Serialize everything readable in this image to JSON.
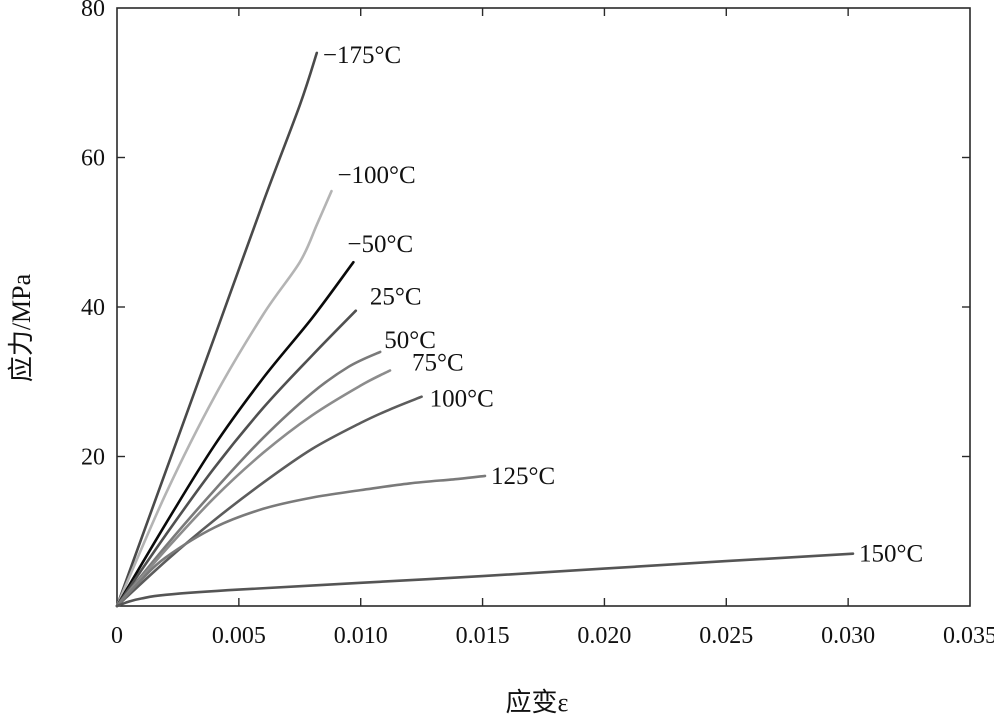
{
  "chart_data": {
    "type": "line",
    "title": "",
    "xlabel": "应变ε",
    "ylabel": "应力/MPa",
    "xlim": [
      0,
      0.035
    ],
    "ylim": [
      0,
      80
    ],
    "x_ticks": [
      0,
      0.005,
      0.01,
      0.015,
      0.02,
      0.025,
      0.03,
      0.035
    ],
    "x_tick_labels": [
      "0",
      "0.005",
      "0.010",
      "0.015",
      "0.020",
      "0.025",
      "0.030",
      "0.035"
    ],
    "y_ticks": [
      20,
      40,
      60,
      80
    ],
    "y_tick_labels": [
      "20",
      "40",
      "60",
      "80"
    ],
    "grid": false,
    "legend": "none",
    "series": [
      {
        "name": "−175°C",
        "color": "#4a4a4a",
        "x": [
          0,
          0.002,
          0.004,
          0.006,
          0.0075,
          0.0082
        ],
        "y": [
          0,
          18,
          36,
          54,
          67,
          74
        ]
      },
      {
        "name": "−100°C",
        "color": "#b4b4b4",
        "x": [
          0,
          0.002,
          0.004,
          0.006,
          0.0075,
          0.0082,
          0.0088
        ],
        "y": [
          0,
          15,
          28,
          39,
          46,
          51,
          55.5
        ]
      },
      {
        "name": "−50°C",
        "color": "#0a0a0a",
        "x": [
          0,
          0.002,
          0.004,
          0.006,
          0.008,
          0.0097
        ],
        "y": [
          0,
          11,
          21.5,
          30.5,
          38.5,
          46
        ]
      },
      {
        "name": "25°C",
        "color": "#505050",
        "x": [
          0,
          0.002,
          0.004,
          0.006,
          0.008,
          0.0098
        ],
        "y": [
          0,
          9.5,
          18.5,
          26.5,
          33.5,
          39.5
        ]
      },
      {
        "name": "50°C",
        "color": "#7a7a7a",
        "x": [
          0,
          0.002,
          0.004,
          0.006,
          0.008,
          0.0095,
          0.0108
        ],
        "y": [
          0,
          8,
          15.5,
          22.5,
          28.5,
          32,
          34
        ]
      },
      {
        "name": "75°C",
        "color": "#8c8c8c",
        "x": [
          0,
          0.002,
          0.004,
          0.006,
          0.008,
          0.01,
          0.0112
        ],
        "y": [
          0,
          7.5,
          14.5,
          20.5,
          25.5,
          29.5,
          31.5
        ]
      },
      {
        "name": "100°C",
        "color": "#5c5c5c",
        "x": [
          0,
          0.002,
          0.004,
          0.006,
          0.008,
          0.01,
          0.0112,
          0.0125
        ],
        "y": [
          0,
          6,
          11.5,
          16.5,
          21,
          24.5,
          26.3,
          28
        ]
      },
      {
        "name": "125°C",
        "color": "#7a7a7a",
        "x": [
          0,
          0.001,
          0.002,
          0.004,
          0.006,
          0.008,
          0.01,
          0.012,
          0.014,
          0.0151
        ],
        "y": [
          0,
          3.5,
          6.5,
          10.5,
          13,
          14.5,
          15.5,
          16.4,
          17,
          17.4
        ]
      },
      {
        "name": "150°C",
        "color": "#555555",
        "x": [
          0,
          0.0005,
          0.001,
          0.002,
          0.005,
          0.01,
          0.015,
          0.02,
          0.025,
          0.0302
        ],
        "y": [
          0,
          0.6,
          1.0,
          1.5,
          2.2,
          3.1,
          4.0,
          5.0,
          6.0,
          7.0
        ]
      }
    ]
  }
}
